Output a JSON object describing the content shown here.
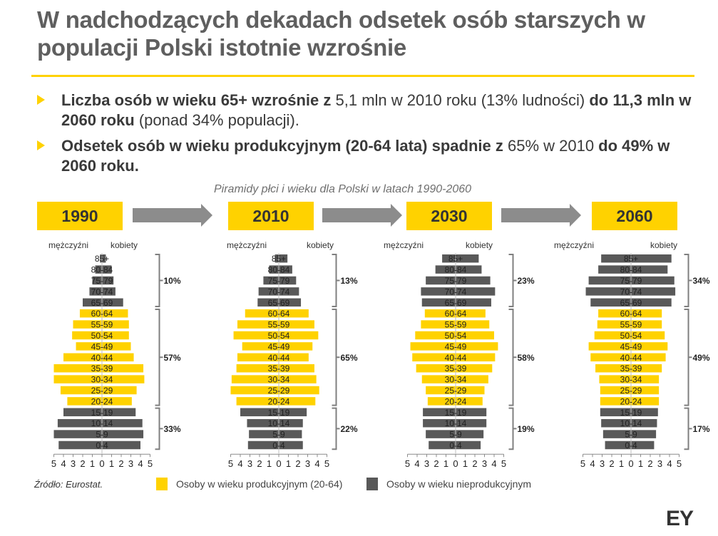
{
  "title": "W nadchodzących dekadach odsetek osób starszych w populacji Polski istotnie wzrośnie",
  "bullets": [
    {
      "b1": "Liczba osób w wieku 65+ wzrośnie z",
      "n1": " 5,1 mln w 2010 roku (13% ludności) ",
      "b2": "do 11,3 mln w 2060 roku",
      "n2": " (ponad 34% populacji)."
    },
    {
      "b1": "Odsetek osób w wieku produkcyjnym (20-64 lata) spadnie z",
      "n1": " 65% w 2010 ",
      "b2": "do 49% w 2060 roku.",
      "n2": ""
    }
  ],
  "subtitle": "Piramidy płci i wieku dla Polski w latach 1990-2060",
  "gender_labels": {
    "men": "mężczyźni",
    "women": "kobiety"
  },
  "legend": {
    "productive": "Osoby w wieku produkcyjnym (20-64)",
    "nonproductive": "Osoby w wieku nieprodukcyjnym"
  },
  "source": "Źródło: Eurostat.",
  "brand": "EY",
  "colors": {
    "productive": "#ffd200",
    "nonproductive": "#595959",
    "accent": "#ffd200",
    "arrow": "#8c8c8c"
  },
  "chart_data": [
    {
      "type": "bar",
      "title": "1990",
      "categories": [
        "85+",
        "80-84",
        "75-79",
        "70-74",
        "65-69",
        "60-64",
        "55-59",
        "50-54",
        "45-49",
        "40-44",
        "35-39",
        "30-34",
        "25-29",
        "20-24",
        "15-19",
        "10-14",
        "5-9",
        "0-4"
      ],
      "xlim": [
        -5,
        5
      ],
      "ticks": [
        "5",
        "4",
        "3",
        "2",
        "1",
        "0",
        "1",
        "2",
        "3",
        "4",
        "5"
      ],
      "series": [
        {
          "name": "mężczyźni",
          "values": [
            0.2,
            0.7,
            1.0,
            1.3,
            2.0,
            2.3,
            3.0,
            3.1,
            2.7,
            4.0,
            5.0,
            5.0,
            4.3,
            3.6,
            4.0,
            4.6,
            5.0,
            4.5
          ]
        },
        {
          "name": "kobiety",
          "values": [
            0.4,
            1.0,
            1.2,
            1.4,
            2.2,
            2.7,
            2.8,
            2.8,
            3.0,
            3.3,
            4.3,
            4.4,
            3.6,
            3.1,
            3.5,
            4.2,
            4.3,
            4.0
          ]
        }
      ],
      "groups": [
        {
          "label": "10%",
          "from": "85+",
          "to": "65-69"
        },
        {
          "label": "57%",
          "from": "60-64",
          "to": "20-24"
        },
        {
          "label": "33%",
          "from": "15-19",
          "to": "0-4"
        }
      ]
    },
    {
      "type": "bar",
      "title": "2010",
      "categories": [
        "85+",
        "80-84",
        "75-79",
        "70-74",
        "65-69",
        "60-64",
        "55-59",
        "50-54",
        "45-49",
        "40-44",
        "35-39",
        "30-34",
        "25-29",
        "20-24",
        "15-19",
        "10-14",
        "5-9",
        "0-4"
      ],
      "xlim": [
        -5,
        5
      ],
      "ticks": [
        "5",
        "4",
        "3",
        "2",
        "1",
        "0",
        "1",
        "2",
        "3",
        "4",
        "5"
      ],
      "series": [
        {
          "name": "mężczyźni",
          "values": [
            0.4,
            1.0,
            1.6,
            2.1,
            2.2,
            3.5,
            4.3,
            4.7,
            3.8,
            4.3,
            4.4,
            4.9,
            5.0,
            4.4,
            4.0,
            3.3,
            3.1,
            3.2
          ]
        },
        {
          "name": "kobiety",
          "values": [
            0.9,
            1.4,
            1.8,
            2.1,
            2.3,
            3.1,
            3.7,
            4.1,
            3.5,
            3.1,
            3.7,
            3.9,
            4.2,
            3.8,
            2.9,
            2.5,
            2.4,
            2.5
          ]
        }
      ],
      "groups": [
        {
          "label": "13%",
          "from": "85+",
          "to": "65-69"
        },
        {
          "label": "65%",
          "from": "60-64",
          "to": "20-24"
        },
        {
          "label": "22%",
          "from": "15-19",
          "to": "0-4"
        }
      ]
    },
    {
      "type": "bar",
      "title": "2030",
      "categories": [
        "85+",
        "80-84",
        "75-79",
        "70-74",
        "65-69",
        "60-64",
        "55-59",
        "50-54",
        "45-49",
        "40-44",
        "35-39",
        "30-34",
        "25-29",
        "20-24",
        "15-19",
        "10-14",
        "5-9",
        "0-4"
      ],
      "xlim": [
        -5,
        5
      ],
      "ticks": [
        "5",
        "4",
        "3",
        "2",
        "1",
        "0",
        "1",
        "2",
        "3",
        "4",
        "5"
      ],
      "series": [
        {
          "name": "mężczyźni",
          "values": [
            1.4,
            2.1,
            3.1,
            3.6,
            3.5,
            3.2,
            3.6,
            4.2,
            4.7,
            4.5,
            4.1,
            3.5,
            3.1,
            2.9,
            3.4,
            3.4,
            3.1,
            2.8
          ]
        },
        {
          "name": "kobiety",
          "values": [
            2.4,
            2.7,
            3.6,
            4.1,
            3.7,
            3.1,
            3.5,
            4.0,
            4.4,
            4.1,
            3.8,
            3.4,
            3.0,
            2.8,
            3.2,
            3.2,
            2.9,
            2.6
          ]
        }
      ],
      "groups": [
        {
          "label": "23%",
          "from": "85+",
          "to": "65-69"
        },
        {
          "label": "58%",
          "from": "60-64",
          "to": "20-24"
        },
        {
          "label": "19%",
          "from": "15-19",
          "to": "0-4"
        }
      ]
    },
    {
      "type": "bar",
      "title": "2060",
      "categories": [
        "85+",
        "80-84",
        "75-79",
        "70-74",
        "65-69",
        "60-64",
        "55-59",
        "50-54",
        "45-49",
        "40-44",
        "35-39",
        "30-34",
        "25-29",
        "20-24",
        "15-19",
        "10-14",
        "5-9",
        "0-4"
      ],
      "xlim": [
        -5,
        5
      ],
      "ticks": [
        "5",
        "4",
        "3",
        "2",
        "1",
        "0",
        "1",
        "2",
        "3",
        "4",
        "5"
      ],
      "series": [
        {
          "name": "mężczyźni",
          "values": [
            3.1,
            3.4,
            4.4,
            4.7,
            4.2,
            3.4,
            3.5,
            3.8,
            4.4,
            4.2,
            3.7,
            3.3,
            3.2,
            3.2,
            3.2,
            3.1,
            2.9,
            2.7
          ]
        },
        {
          "name": "kobiety",
          "values": [
            4.2,
            3.8,
            4.5,
            4.6,
            4.2,
            3.2,
            3.2,
            3.5,
            3.8,
            3.6,
            3.2,
            2.9,
            2.9,
            2.9,
            2.8,
            2.7,
            2.6,
            2.4
          ]
        }
      ],
      "groups": [
        {
          "label": "34%",
          "from": "85+",
          "to": "65-69"
        },
        {
          "label": "49%",
          "from": "60-64",
          "to": "20-24"
        },
        {
          "label": "17%",
          "from": "15-19",
          "to": "0-4"
        }
      ]
    }
  ]
}
